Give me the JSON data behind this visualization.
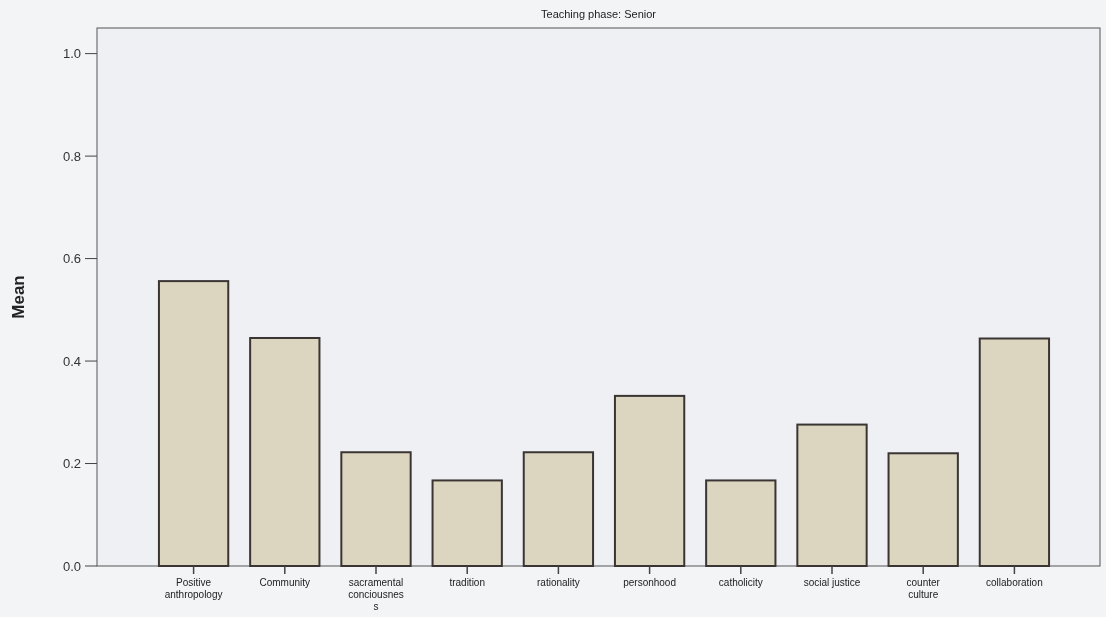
{
  "chart_data": {
    "type": "bar",
    "title": "Teaching phase: Senior",
    "ylabel": "Mean",
    "categories": [
      "Positive\nanthropology",
      "Community",
      "sacramental\nconciousnes\ns",
      "tradition",
      "rationality",
      "personhood",
      "catholicity",
      "social justice",
      "counter\nculture",
      "collaboration"
    ],
    "values": [
      0.556,
      0.445,
      0.222,
      0.167,
      0.222,
      0.332,
      0.167,
      0.276,
      0.22,
      0.444
    ],
    "color": "#dcd6c0",
    "ylim": [
      0,
      1.05
    ],
    "yticks": [
      {
        "value": 0,
        "label": "0.0"
      },
      {
        "value": 0.2,
        "label": "0.2"
      },
      {
        "value": 0.4,
        "label": "0.4"
      },
      {
        "value": 0.6,
        "label": "0.6"
      },
      {
        "value": 0.8,
        "label": "0.8"
      },
      {
        "value": 1,
        "label": "1.0"
      }
    ],
    "grid": false
  }
}
